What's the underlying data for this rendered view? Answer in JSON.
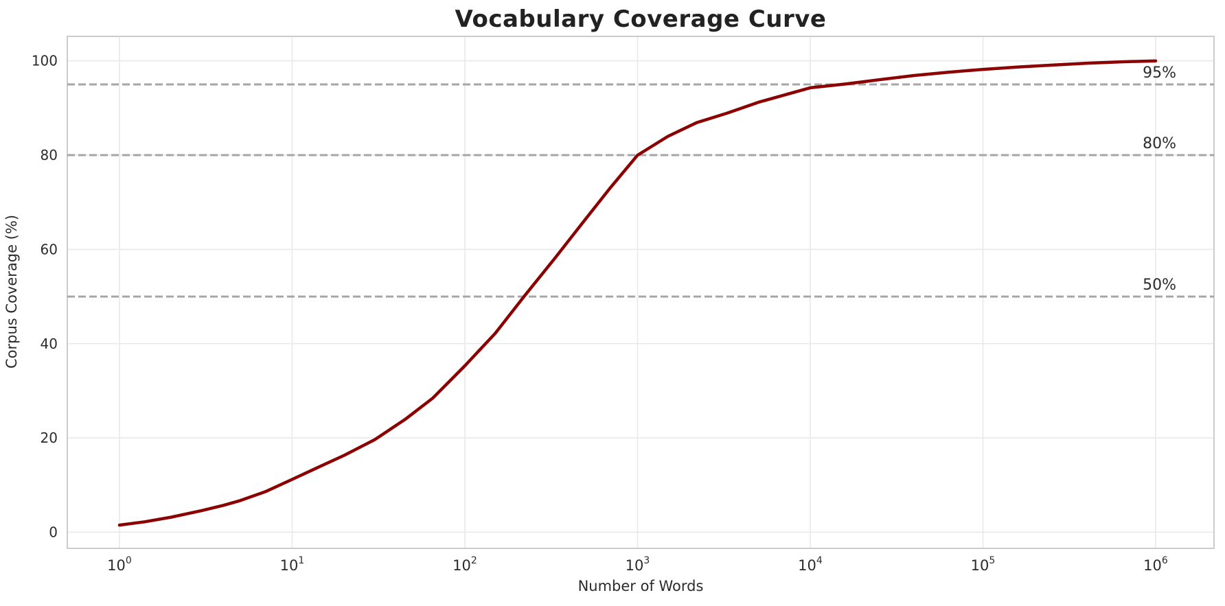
{
  "chart_data": {
    "type": "line",
    "title": "Vocabulary Coverage Curve",
    "xlabel": "Number of Words",
    "ylabel": "Corpus Coverage (%)",
    "x_scale": "log",
    "grid": true,
    "legend": "none",
    "xlim_log10": [
      -0.302,
      6.338
    ],
    "ylim": [
      -3.43,
      105.2
    ],
    "x_ticks": [
      {
        "base": "10",
        "exp": "0",
        "value": 1
      },
      {
        "base": "10",
        "exp": "1",
        "value": 10
      },
      {
        "base": "10",
        "exp": "2",
        "value": 100
      },
      {
        "base": "10",
        "exp": "3",
        "value": 1000
      },
      {
        "base": "10",
        "exp": "4",
        "value": 10000
      },
      {
        "base": "10",
        "exp": "5",
        "value": 100000
      },
      {
        "base": "10",
        "exp": "6",
        "value": 1000000
      }
    ],
    "y_ticks": [
      0,
      20,
      40,
      60,
      80,
      100
    ],
    "series": [
      {
        "name": "corpus-coverage",
        "color": "#8b0000",
        "line_width": 4.5,
        "points": [
          [
            1,
            1.5
          ],
          [
            1.4,
            2.2
          ],
          [
            2,
            3.2
          ],
          [
            3,
            4.6
          ],
          [
            4,
            5.7
          ],
          [
            5,
            6.7
          ],
          [
            7,
            8.6
          ],
          [
            10,
            11.2
          ],
          [
            14,
            13.7
          ],
          [
            20,
            16.3
          ],
          [
            30,
            19.6
          ],
          [
            45,
            23.9
          ],
          [
            65,
            28.4
          ],
          [
            100,
            35.3
          ],
          [
            150,
            42.2
          ],
          [
            220,
            50.0
          ],
          [
            330,
            58.0
          ],
          [
            480,
            65.6
          ],
          [
            700,
            73.2
          ],
          [
            1000,
            80.0
          ],
          [
            1500,
            84.0
          ],
          [
            2200,
            86.9
          ],
          [
            3300,
            88.9
          ],
          [
            5000,
            91.2
          ],
          [
            7000,
            92.7
          ],
          [
            10000,
            94.3
          ],
          [
            16000,
            95.1
          ],
          [
            25000,
            96.0
          ],
          [
            40000,
            96.9
          ],
          [
            63000,
            97.6
          ],
          [
            100000,
            98.2
          ],
          [
            160000,
            98.7
          ],
          [
            250000,
            99.1
          ],
          [
            400000,
            99.5
          ],
          [
            630000,
            99.8
          ],
          [
            1000000,
            100.0
          ]
        ]
      }
    ],
    "reference_lines": [
      {
        "value": 50,
        "label": "50%"
      },
      {
        "value": 80,
        "label": "80%"
      },
      {
        "value": 95,
        "label": "95%"
      }
    ],
    "colors": {
      "curve": "#8b0000",
      "reference_line": "#a6a6a6",
      "grid": "#e9e9e9",
      "spine": "#cccccc",
      "text": "#2b2b2b",
      "title": "#222222",
      "background": "#ffffff"
    }
  }
}
